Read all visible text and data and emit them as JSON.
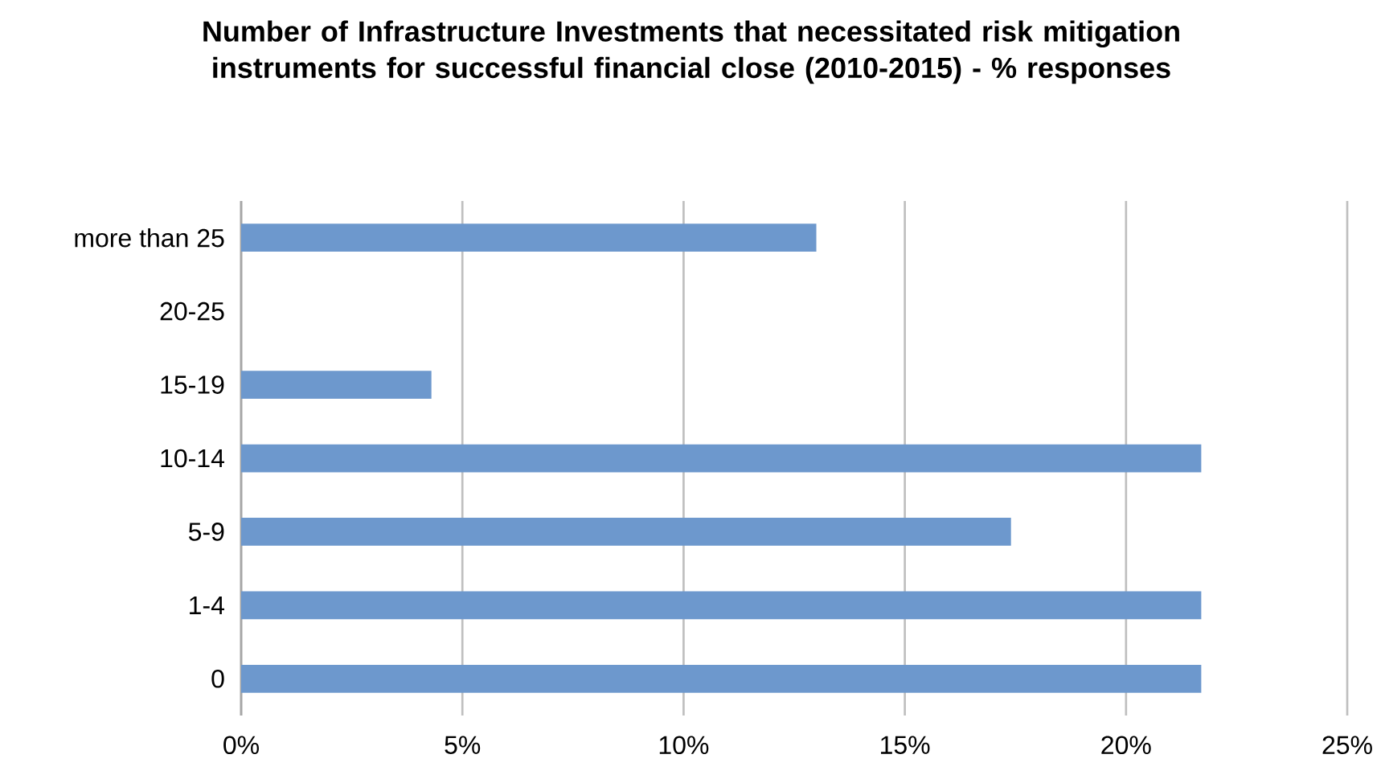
{
  "chart_data": {
    "type": "bar",
    "orientation": "horizontal",
    "title": "Number of Infrastructure Investments that necessitated risk mitigation instruments for successful financial close (2010-2015) - % responses",
    "categories": [
      "more than 25",
      "20-25",
      "15-19",
      "10-14",
      "5-9",
      "1-4",
      "0"
    ],
    "values": [
      13.0,
      0,
      4.3,
      21.7,
      17.4,
      21.7,
      21.7
    ],
    "color": "#6d98cd",
    "xlim": [
      0,
      25
    ],
    "xticks": [
      {
        "value": 0,
        "label": "0%"
      },
      {
        "value": 5,
        "label": "5%"
      },
      {
        "value": 10,
        "label": "10%"
      },
      {
        "value": 15,
        "label": "15%"
      },
      {
        "value": 20,
        "label": "20%"
      },
      {
        "value": 25,
        "label": "25%"
      }
    ],
    "grid": "x"
  }
}
